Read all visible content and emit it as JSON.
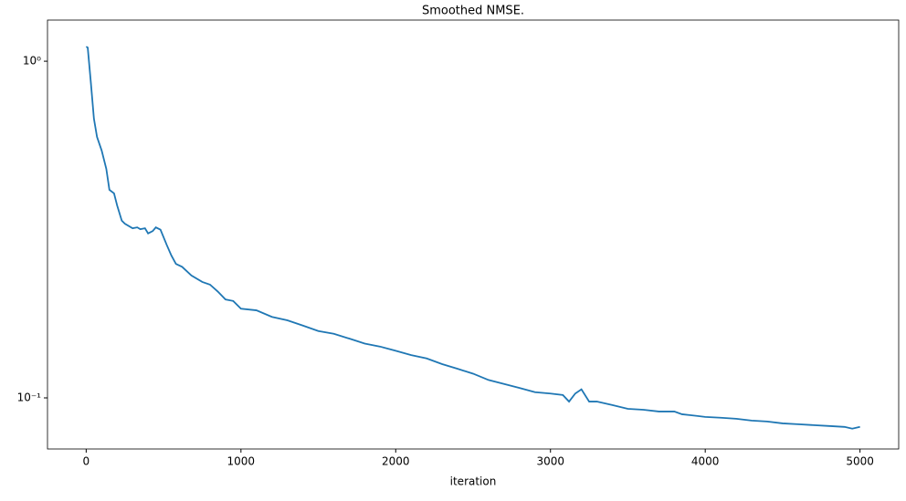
{
  "chart_data": {
    "type": "line",
    "title": "Smoothed NMSE.",
    "x_label": "iteration",
    "x": [
      0,
      10,
      30,
      50,
      70,
      100,
      130,
      150,
      180,
      200,
      230,
      250,
      300,
      330,
      350,
      380,
      400,
      430,
      450,
      480,
      520,
      550,
      580,
      620,
      680,
      750,
      800,
      850,
      900,
      950,
      1000,
      1100,
      1200,
      1300,
      1400,
      1500,
      1600,
      1700,
      1800,
      1900,
      2000,
      2100,
      2200,
      2300,
      2400,
      2500,
      2600,
      2700,
      2800,
      2900,
      3000,
      3080,
      3120,
      3160,
      3200,
      3250,
      3300,
      3400,
      3500,
      3600,
      3700,
      3800,
      3850,
      3900,
      4000,
      4100,
      4200,
      4300,
      4400,
      4500,
      4600,
      4700,
      4800,
      4900,
      4950,
      5000
    ],
    "series": [
      {
        "name": "NMSE",
        "color": "#1f77b4",
        "values": [
          1.105,
          1.098,
          0.866,
          0.675,
          0.596,
          0.543,
          0.479,
          0.415,
          0.405,
          0.373,
          0.336,
          0.329,
          0.319,
          0.321,
          0.317,
          0.319,
          0.308,
          0.313,
          0.321,
          0.316,
          0.285,
          0.265,
          0.25,
          0.245,
          0.231,
          0.221,
          0.217,
          0.207,
          0.196,
          0.194,
          0.184,
          0.182,
          0.174,
          0.17,
          0.164,
          0.158,
          0.155,
          0.15,
          0.145,
          0.142,
          0.138,
          0.134,
          0.131,
          0.126,
          0.122,
          0.118,
          0.113,
          0.11,
          0.107,
          0.104,
          0.103,
          0.102,
          0.0975,
          0.103,
          0.106,
          0.0975,
          0.0975,
          0.0952,
          0.0928,
          0.0922,
          0.0911,
          0.0911,
          0.0894,
          0.0889,
          0.0878,
          0.0873,
          0.0867,
          0.0856,
          0.0851,
          0.084,
          0.0835,
          0.083,
          0.0825,
          0.082,
          0.081,
          0.082
        ]
      }
    ],
    "xlim": [
      -250,
      5250
    ],
    "xticks": [
      0,
      1000,
      2000,
      3000,
      4000,
      5000
    ],
    "ylim": [
      0.0705,
      1.325
    ],
    "yticks": [
      {
        "value": 0.1,
        "label": "10⁻¹"
      },
      {
        "value": 1,
        "label": "10⁰"
      }
    ],
    "log_y": true,
    "grid": false
  }
}
